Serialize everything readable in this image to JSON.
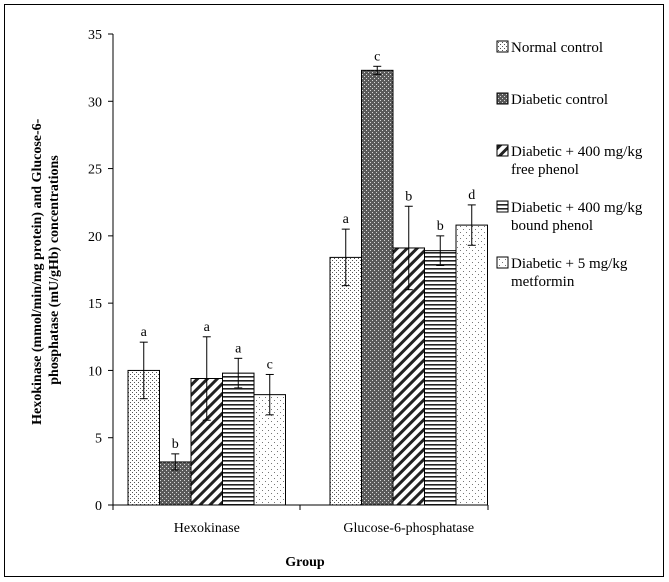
{
  "chart_data": {
    "type": "bar",
    "title": "",
    "xlabel": "Group",
    "ylabel": "Hexokinase (mmol/min/mg protein) and Glucose-6-phosphatase (mU/gHb) concentrations",
    "ylabel_lines": [
      "Hexokinase (mmol/min/mg protein) and Glucose-6-",
      "phosphatase (mU/gHb) concentrations"
    ],
    "ylim": [
      0,
      35
    ],
    "yticks": [
      0,
      5,
      10,
      15,
      20,
      25,
      30,
      35
    ],
    "grid": false,
    "legend_position": "right",
    "categories": [
      "Hexokinase",
      "Glucose-6-phosphatase"
    ],
    "series": [
      {
        "name": "Normal control",
        "name_lines": [
          "Normal control"
        ],
        "pattern": "dots-fine",
        "values": [
          10.0,
          18.4
        ],
        "errors": [
          2.1,
          2.1
        ],
        "labels": [
          "a",
          "a"
        ]
      },
      {
        "name": "Diabetic control",
        "name_lines": [
          "Diabetic control"
        ],
        "pattern": "dense-dark",
        "values": [
          3.2,
          32.3
        ],
        "errors": [
          0.6,
          0.3
        ],
        "labels": [
          "b",
          "c"
        ]
      },
      {
        "name": "Diabetic + 400 mg/kg free phenol",
        "name_lines": [
          "Diabetic + 400 mg/kg",
          "free phenol"
        ],
        "pattern": "diagonal",
        "values": [
          9.4,
          19.1
        ],
        "errors": [
          3.1,
          3.1
        ],
        "labels": [
          "a",
          "b"
        ]
      },
      {
        "name": "Diabetic + 400 mg/kg bound phenol",
        "name_lines": [
          "Diabetic + 400 mg/kg",
          "bound phenol"
        ],
        "pattern": "horizontal",
        "values": [
          9.8,
          18.9
        ],
        "errors": [
          1.1,
          1.1
        ],
        "labels": [
          "a",
          "b"
        ]
      },
      {
        "name": "Diabetic + 5 mg/kg metformin",
        "name_lines": [
          "Diabetic + 5 mg/kg",
          "metformin"
        ],
        "pattern": "dots-sparse",
        "values": [
          8.2,
          20.8
        ],
        "errors": [
          1.5,
          1.5
        ],
        "labels": [
          "c",
          "d"
        ]
      }
    ]
  }
}
